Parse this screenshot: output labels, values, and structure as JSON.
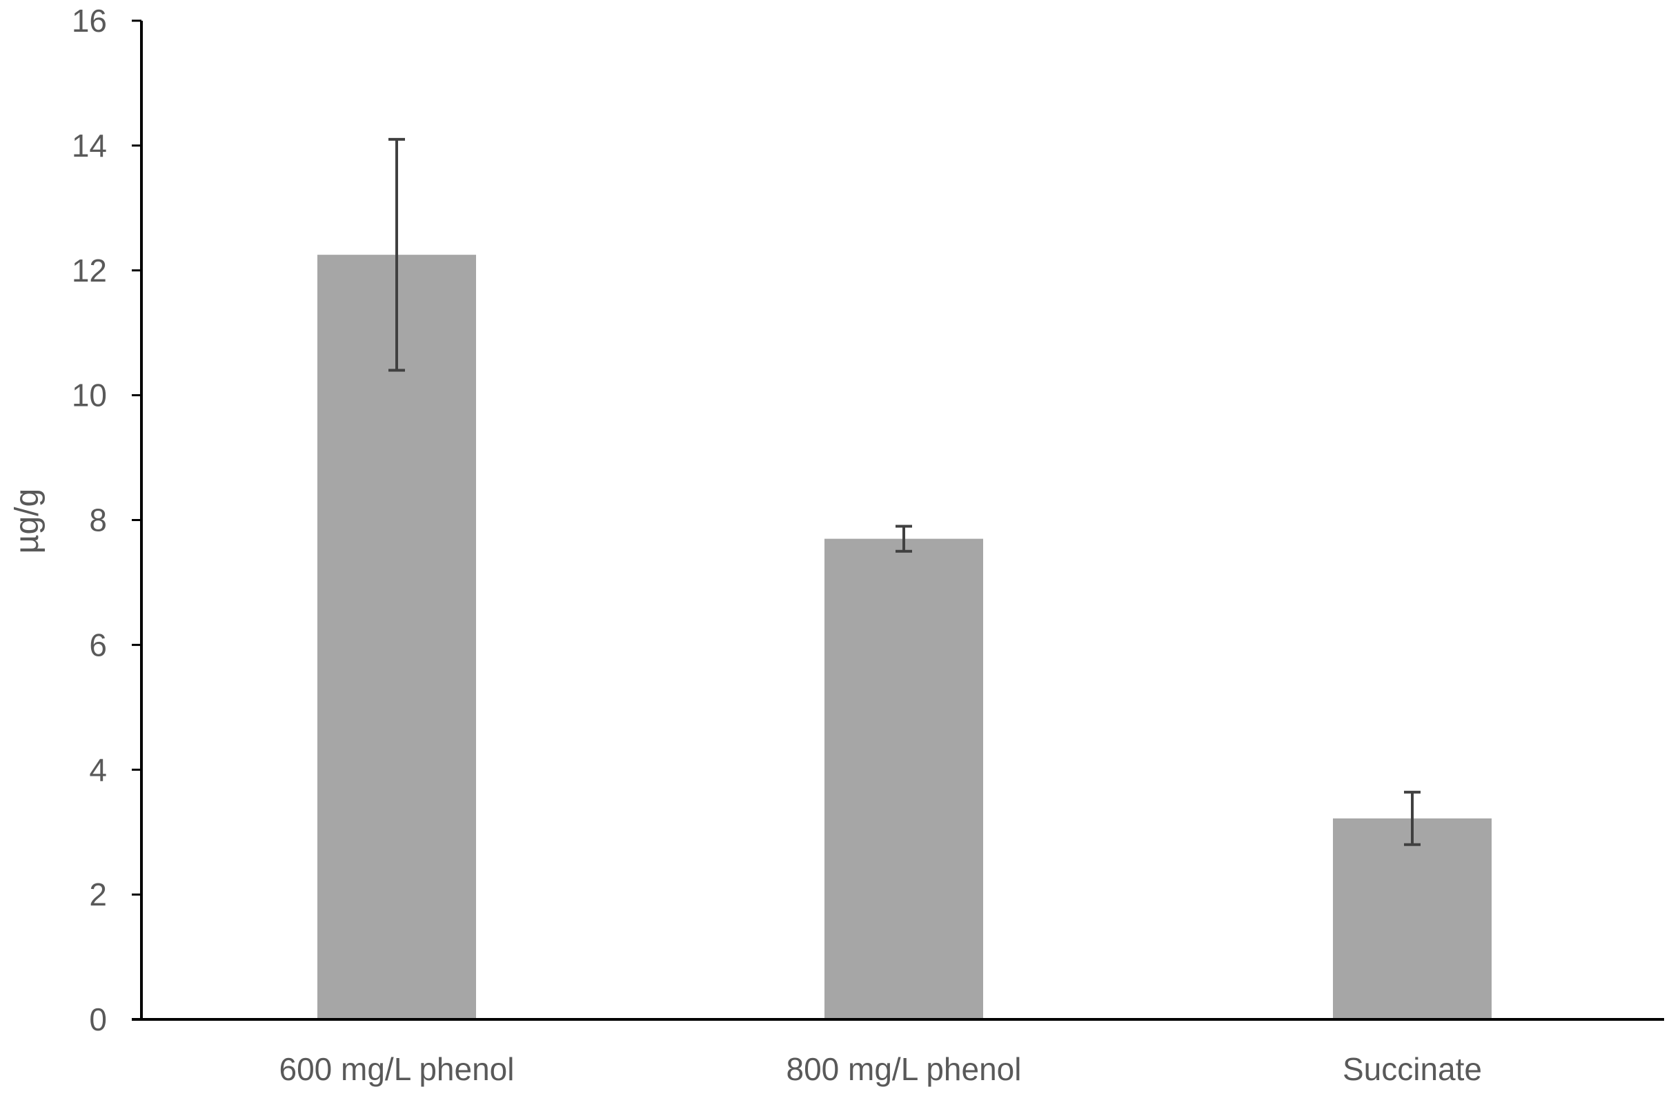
{
  "chart_data": {
    "type": "bar",
    "title": "",
    "xlabel": "",
    "ylabel": "µg/g",
    "categories": [
      "600 mg/L phenol",
      "800 mg/L phenol",
      "Succinate"
    ],
    "values": [
      12.25,
      7.7,
      3.22
    ],
    "error_bars": [
      1.85,
      0.2,
      0.42
    ],
    "ylim": [
      0,
      16
    ],
    "yticks": [
      0,
      2,
      4,
      6,
      8,
      10,
      12,
      14,
      16
    ],
    "grid": false,
    "legend": "none",
    "colors": {
      "bar": "#a6a6a6",
      "error_bar": "#404040",
      "axis": "#000000",
      "text": "#595959"
    }
  }
}
